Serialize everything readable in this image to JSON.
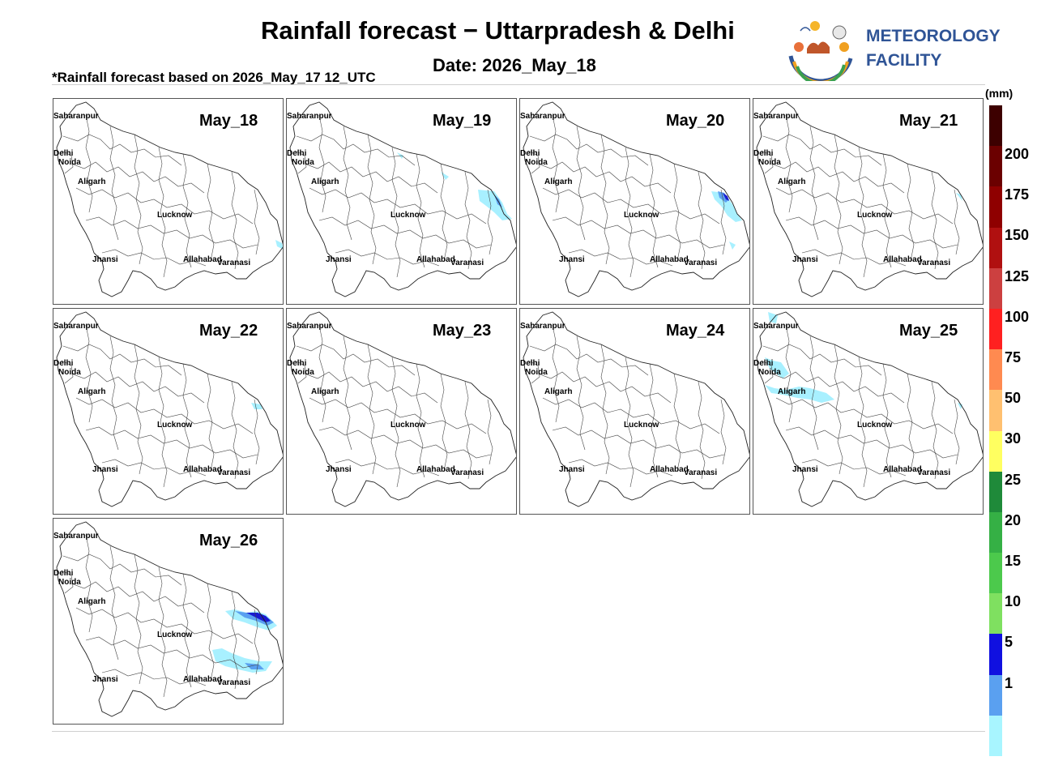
{
  "header": {
    "title": "Rainfall forecast − Uttarpradesh & Delhi",
    "date": "Date: 2026_May_18",
    "basis": "*Rainfall forecast based on 2026_May_17 12_UTC",
    "org_line1": "METEOROLOGY",
    "org_line2": "FACILITY",
    "logo_text": "METEOROLOGY FACILITY"
  },
  "cities": {
    "saharanpur": "Saharanpur",
    "delhi": "Delhi",
    "noida": "Noida",
    "aligarh": "Aligarh",
    "lucknow": "Lucknow",
    "jhansi": "Jhansi",
    "allahabad": "Allahabad",
    "varanasi": "Varanasi"
  },
  "panels": [
    {
      "label": "May_18"
    },
    {
      "label": "May_19"
    },
    {
      "label": "May_20"
    },
    {
      "label": "May_21"
    },
    {
      "label": "May_22"
    },
    {
      "label": "May_23"
    },
    {
      "label": "May_24"
    },
    {
      "label": "May_25"
    },
    {
      "label": "May_26"
    }
  ],
  "legend": {
    "unit": "(mm)",
    "colors": [
      "#3d0000",
      "#6b0000",
      "#8f0000",
      "#b01010",
      "#cc4040",
      "#ff2020",
      "#ff8a50",
      "#ffc070",
      "#ffff60",
      "#1f8a3a",
      "#35b045",
      "#4cc94c",
      "#7fe060",
      "#1010e0",
      "#5aa0f0",
      "#a8f5ff"
    ],
    "ticks": [
      "200",
      "175",
      "150",
      "125",
      "100",
      "75",
      "50",
      "30",
      "25",
      "20",
      "15",
      "10",
      "5",
      "1"
    ]
  },
  "colors": {
    "light": "#a8f0ff",
    "mid": "#5aa0f0",
    "dark": "#1a1ad0",
    "org": "#2f5496"
  }
}
